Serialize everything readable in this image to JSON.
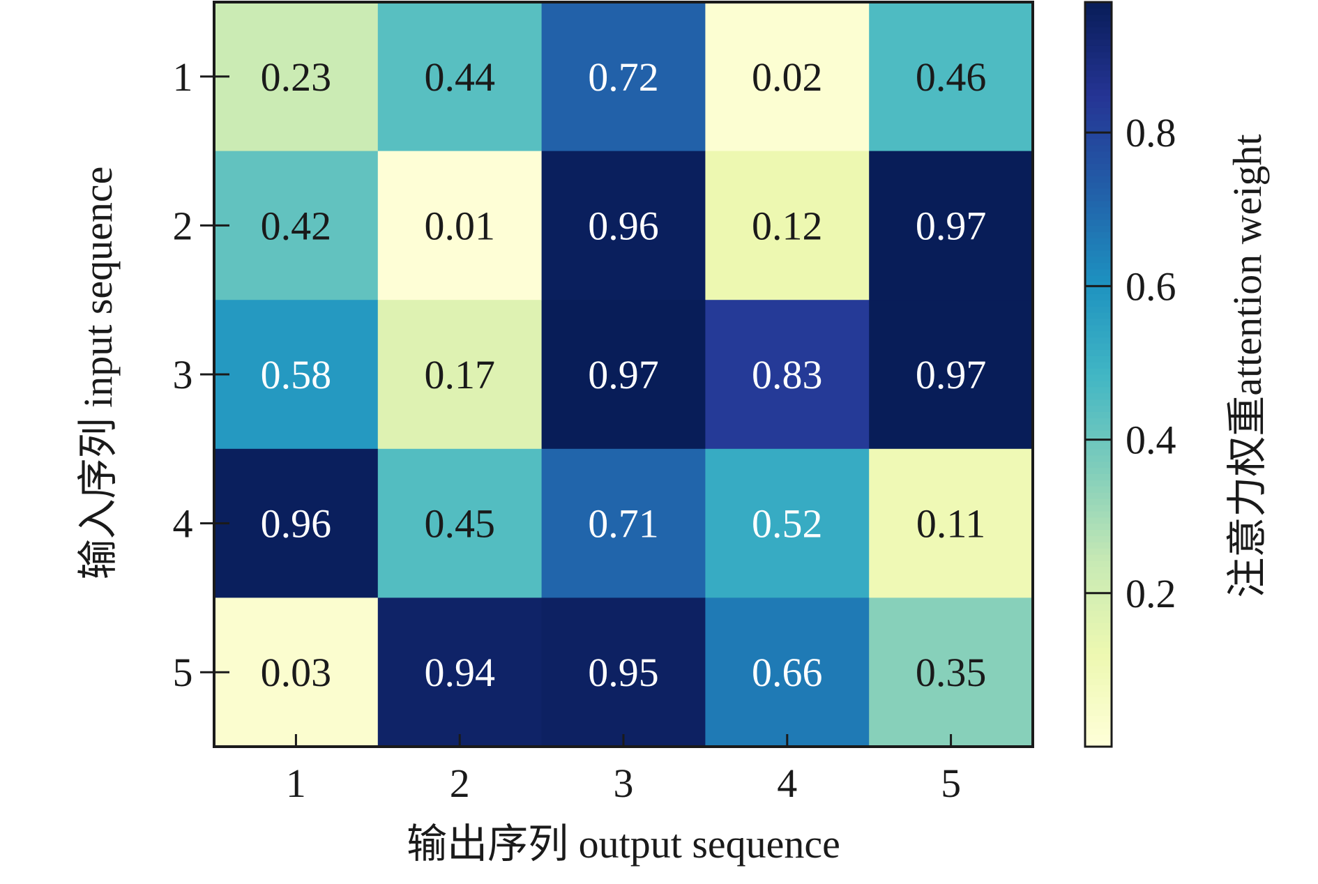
{
  "chart_data": {
    "type": "heatmap",
    "x": [
      "1",
      "2",
      "3",
      "4",
      "5"
    ],
    "y": [
      "1",
      "2",
      "3",
      "4",
      "5"
    ],
    "values": [
      [
        0.23,
        0.44,
        0.72,
        0.02,
        0.46
      ],
      [
        0.42,
        0.01,
        0.96,
        0.12,
        0.97
      ],
      [
        0.58,
        0.17,
        0.97,
        0.83,
        0.97
      ],
      [
        0.96,
        0.45,
        0.71,
        0.52,
        0.11
      ],
      [
        0.03,
        0.94,
        0.95,
        0.66,
        0.35
      ]
    ],
    "xlabel": "输出序列 output sequence",
    "ylabel": "输入序列 input sequence",
    "colorbar": {
      "label": "注意力权重attention weight",
      "ticks": [
        0.2,
        0.4,
        0.6,
        0.8
      ],
      "tick_labels": [
        "0.2",
        "0.4",
        "0.6",
        "0.8"
      ],
      "range": [
        0.0,
        0.97
      ],
      "colormap": "YlGnBu"
    },
    "colors": {
      "low": "#fbfbe0",
      "mid_low": "#d9efc8",
      "mid": "#5fc0cb",
      "mid_high": "#0f78c0",
      "high": "#183668",
      "text_light": "#ffffff",
      "text_dark": "#1a1a1a"
    }
  }
}
